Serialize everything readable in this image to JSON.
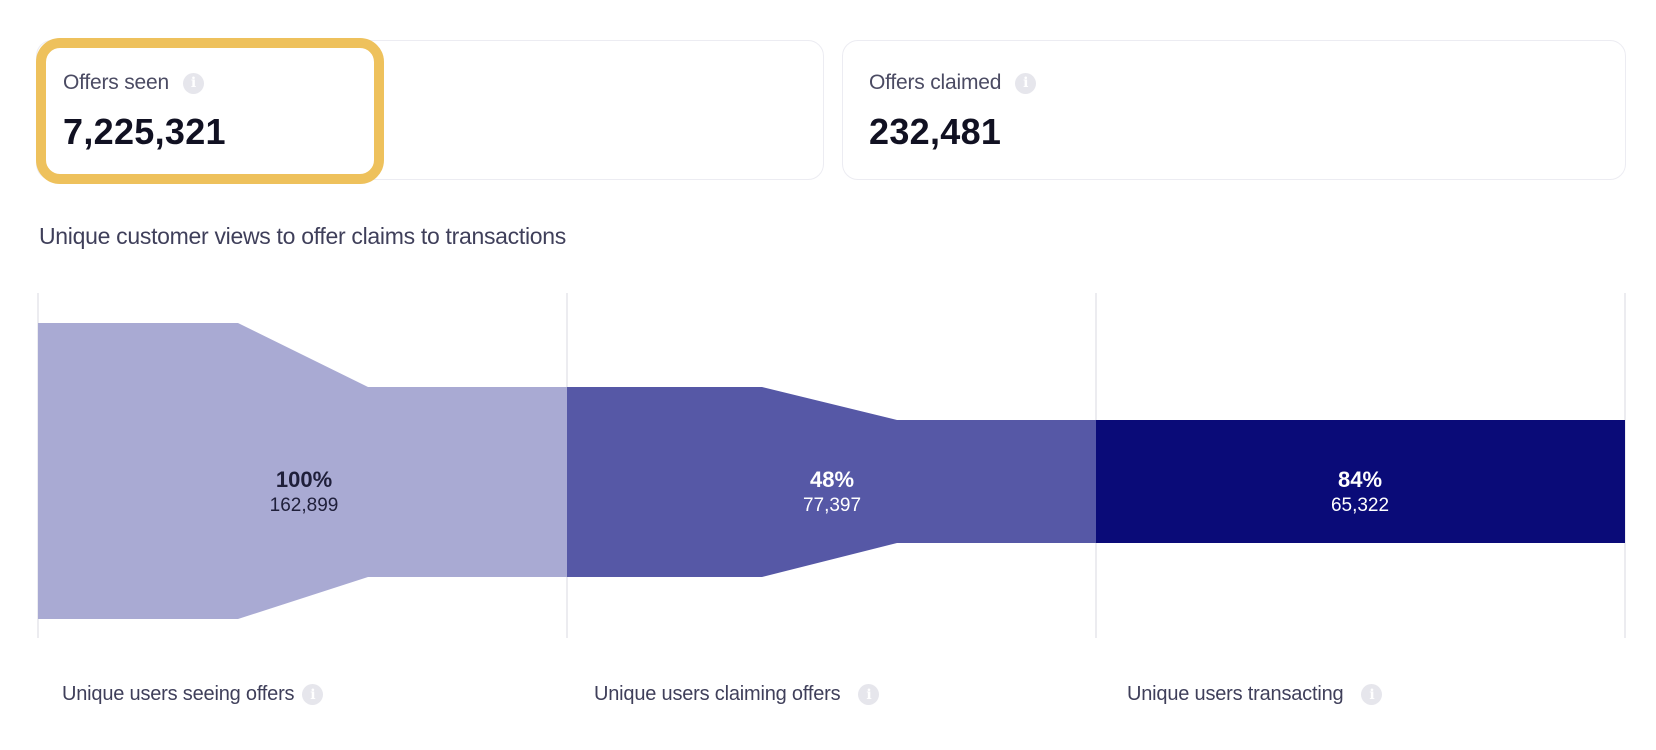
{
  "metrics": {
    "offers_seen": {
      "label": "Offers seen",
      "value": "7,225,321"
    },
    "offers_claimed": {
      "label": "Offers claimed",
      "value": "232,481"
    }
  },
  "info_icon": {
    "name": "info-icon",
    "glyph": "i"
  },
  "funnel": {
    "title": "Unique customer views to offer claims to transactions",
    "stages": [
      {
        "label": "Unique users seeing offers",
        "percent": "100%",
        "count": "162,899",
        "color": "#a9aad3"
      },
      {
        "label": "Unique users claiming offers",
        "percent": "48%",
        "count": "77,397",
        "color": "#5658a6"
      },
      {
        "label": "Unique users transacting",
        "percent": "84%",
        "count": "65,322",
        "color": "#0a0b78"
      }
    ]
  },
  "highlight_color": "#eec15c"
}
